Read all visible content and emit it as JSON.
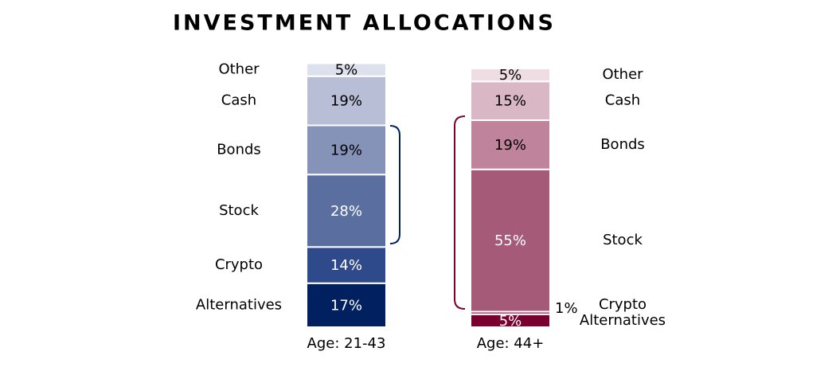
{
  "chart_data": {
    "type": "stacked_bar",
    "title": "INVESTMENT ALLOCATIONS",
    "categories": [
      "Age: 21-43",
      "Age: 44+"
    ],
    "series": [
      {
        "name": "Alternatives",
        "color": [
          "#002060",
          "#7a0030"
        ],
        "values": [
          17,
          5
        ],
        "value_labels": [
          "17%",
          "5%"
        ]
      },
      {
        "name": "Crypto",
        "color": [
          "#2f4a8a",
          "#8f1f48"
        ],
        "values": [
          14,
          1
        ],
        "value_labels": [
          "14%",
          "1%"
        ]
      },
      {
        "name": "Stock",
        "color": [
          "#5a6fa0",
          "#a55a78"
        ],
        "values": [
          28,
          55
        ],
        "value_labels": [
          "28%",
          "55%"
        ]
      },
      {
        "name": "Bonds",
        "color": [
          "#8593b8",
          "#c0839c"
        ],
        "values": [
          19,
          19
        ],
        "value_labels": [
          "19%",
          "19%"
        ]
      },
      {
        "name": "Cash",
        "color": [
          "#b8bed6",
          "#d9b7c5"
        ],
        "values": [
          19,
          15
        ],
        "value_labels": [
          "19%",
          "15%"
        ]
      },
      {
        "name": "Other",
        "color": [
          "#dde1ee",
          "#eedde3"
        ],
        "values": [
          5,
          5
        ],
        "value_labels": [
          "5%",
          "5%"
        ]
      }
    ]
  }
}
